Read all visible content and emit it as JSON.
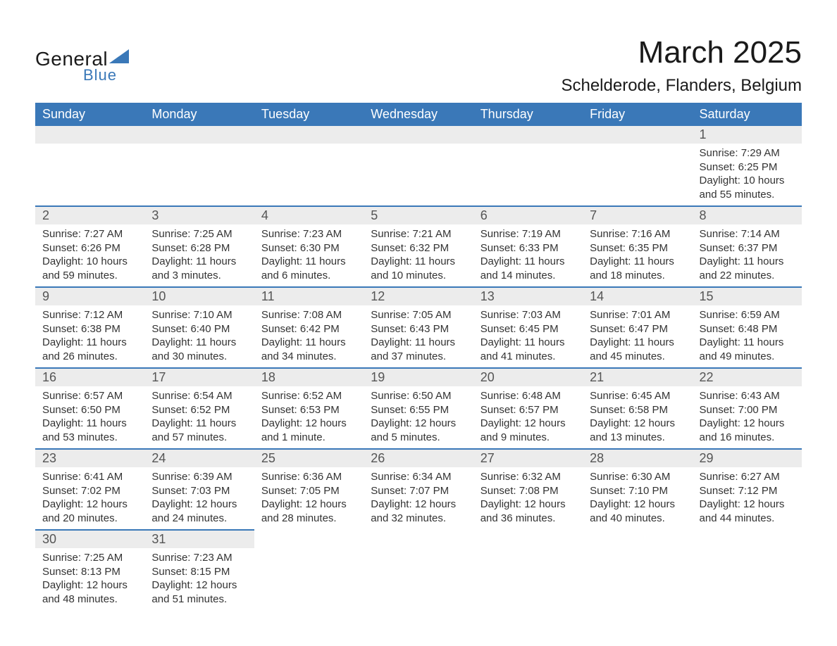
{
  "logo": {
    "text_general": "General",
    "text_blue": "Blue",
    "triangle_color": "#3a78b8"
  },
  "title": {
    "month": "March 2025",
    "location": "Schelderode, Flanders, Belgium"
  },
  "colors": {
    "header_bg": "#3a78b8",
    "header_text": "#ffffff",
    "daynum_bg": "#ececec",
    "row_border": "#3a78b8",
    "body_text": "#333333",
    "title_text": "#1a1a1a"
  },
  "typography": {
    "month_fontsize": 44,
    "location_fontsize": 24,
    "header_fontsize": 18,
    "daynum_fontsize": 18,
    "detail_fontsize": 15
  },
  "columns": [
    "Sunday",
    "Monday",
    "Tuesday",
    "Wednesday",
    "Thursday",
    "Friday",
    "Saturday"
  ],
  "weeks": [
    [
      null,
      null,
      null,
      null,
      null,
      null,
      {
        "n": "1",
        "sunrise": "Sunrise: 7:29 AM",
        "sunset": "Sunset: 6:25 PM",
        "day1": "Daylight: 10 hours",
        "day2": "and 55 minutes."
      }
    ],
    [
      {
        "n": "2",
        "sunrise": "Sunrise: 7:27 AM",
        "sunset": "Sunset: 6:26 PM",
        "day1": "Daylight: 10 hours",
        "day2": "and 59 minutes."
      },
      {
        "n": "3",
        "sunrise": "Sunrise: 7:25 AM",
        "sunset": "Sunset: 6:28 PM",
        "day1": "Daylight: 11 hours",
        "day2": "and 3 minutes."
      },
      {
        "n": "4",
        "sunrise": "Sunrise: 7:23 AM",
        "sunset": "Sunset: 6:30 PM",
        "day1": "Daylight: 11 hours",
        "day2": "and 6 minutes."
      },
      {
        "n": "5",
        "sunrise": "Sunrise: 7:21 AM",
        "sunset": "Sunset: 6:32 PM",
        "day1": "Daylight: 11 hours",
        "day2": "and 10 minutes."
      },
      {
        "n": "6",
        "sunrise": "Sunrise: 7:19 AM",
        "sunset": "Sunset: 6:33 PM",
        "day1": "Daylight: 11 hours",
        "day2": "and 14 minutes."
      },
      {
        "n": "7",
        "sunrise": "Sunrise: 7:16 AM",
        "sunset": "Sunset: 6:35 PM",
        "day1": "Daylight: 11 hours",
        "day2": "and 18 minutes."
      },
      {
        "n": "8",
        "sunrise": "Sunrise: 7:14 AM",
        "sunset": "Sunset: 6:37 PM",
        "day1": "Daylight: 11 hours",
        "day2": "and 22 minutes."
      }
    ],
    [
      {
        "n": "9",
        "sunrise": "Sunrise: 7:12 AM",
        "sunset": "Sunset: 6:38 PM",
        "day1": "Daylight: 11 hours",
        "day2": "and 26 minutes."
      },
      {
        "n": "10",
        "sunrise": "Sunrise: 7:10 AM",
        "sunset": "Sunset: 6:40 PM",
        "day1": "Daylight: 11 hours",
        "day2": "and 30 minutes."
      },
      {
        "n": "11",
        "sunrise": "Sunrise: 7:08 AM",
        "sunset": "Sunset: 6:42 PM",
        "day1": "Daylight: 11 hours",
        "day2": "and 34 minutes."
      },
      {
        "n": "12",
        "sunrise": "Sunrise: 7:05 AM",
        "sunset": "Sunset: 6:43 PM",
        "day1": "Daylight: 11 hours",
        "day2": "and 37 minutes."
      },
      {
        "n": "13",
        "sunrise": "Sunrise: 7:03 AM",
        "sunset": "Sunset: 6:45 PM",
        "day1": "Daylight: 11 hours",
        "day2": "and 41 minutes."
      },
      {
        "n": "14",
        "sunrise": "Sunrise: 7:01 AM",
        "sunset": "Sunset: 6:47 PM",
        "day1": "Daylight: 11 hours",
        "day2": "and 45 minutes."
      },
      {
        "n": "15",
        "sunrise": "Sunrise: 6:59 AM",
        "sunset": "Sunset: 6:48 PM",
        "day1": "Daylight: 11 hours",
        "day2": "and 49 minutes."
      }
    ],
    [
      {
        "n": "16",
        "sunrise": "Sunrise: 6:57 AM",
        "sunset": "Sunset: 6:50 PM",
        "day1": "Daylight: 11 hours",
        "day2": "and 53 minutes."
      },
      {
        "n": "17",
        "sunrise": "Sunrise: 6:54 AM",
        "sunset": "Sunset: 6:52 PM",
        "day1": "Daylight: 11 hours",
        "day2": "and 57 minutes."
      },
      {
        "n": "18",
        "sunrise": "Sunrise: 6:52 AM",
        "sunset": "Sunset: 6:53 PM",
        "day1": "Daylight: 12 hours",
        "day2": "and 1 minute."
      },
      {
        "n": "19",
        "sunrise": "Sunrise: 6:50 AM",
        "sunset": "Sunset: 6:55 PM",
        "day1": "Daylight: 12 hours",
        "day2": "and 5 minutes."
      },
      {
        "n": "20",
        "sunrise": "Sunrise: 6:48 AM",
        "sunset": "Sunset: 6:57 PM",
        "day1": "Daylight: 12 hours",
        "day2": "and 9 minutes."
      },
      {
        "n": "21",
        "sunrise": "Sunrise: 6:45 AM",
        "sunset": "Sunset: 6:58 PM",
        "day1": "Daylight: 12 hours",
        "day2": "and 13 minutes."
      },
      {
        "n": "22",
        "sunrise": "Sunrise: 6:43 AM",
        "sunset": "Sunset: 7:00 PM",
        "day1": "Daylight: 12 hours",
        "day2": "and 16 minutes."
      }
    ],
    [
      {
        "n": "23",
        "sunrise": "Sunrise: 6:41 AM",
        "sunset": "Sunset: 7:02 PM",
        "day1": "Daylight: 12 hours",
        "day2": "and 20 minutes."
      },
      {
        "n": "24",
        "sunrise": "Sunrise: 6:39 AM",
        "sunset": "Sunset: 7:03 PM",
        "day1": "Daylight: 12 hours",
        "day2": "and 24 minutes."
      },
      {
        "n": "25",
        "sunrise": "Sunrise: 6:36 AM",
        "sunset": "Sunset: 7:05 PM",
        "day1": "Daylight: 12 hours",
        "day2": "and 28 minutes."
      },
      {
        "n": "26",
        "sunrise": "Sunrise: 6:34 AM",
        "sunset": "Sunset: 7:07 PM",
        "day1": "Daylight: 12 hours",
        "day2": "and 32 minutes."
      },
      {
        "n": "27",
        "sunrise": "Sunrise: 6:32 AM",
        "sunset": "Sunset: 7:08 PM",
        "day1": "Daylight: 12 hours",
        "day2": "and 36 minutes."
      },
      {
        "n": "28",
        "sunrise": "Sunrise: 6:30 AM",
        "sunset": "Sunset: 7:10 PM",
        "day1": "Daylight: 12 hours",
        "day2": "and 40 minutes."
      },
      {
        "n": "29",
        "sunrise": "Sunrise: 6:27 AM",
        "sunset": "Sunset: 7:12 PM",
        "day1": "Daylight: 12 hours",
        "day2": "and 44 minutes."
      }
    ],
    [
      {
        "n": "30",
        "sunrise": "Sunrise: 7:25 AM",
        "sunset": "Sunset: 8:13 PM",
        "day1": "Daylight: 12 hours",
        "day2": "and 48 minutes."
      },
      {
        "n": "31",
        "sunrise": "Sunrise: 7:23 AM",
        "sunset": "Sunset: 8:15 PM",
        "day1": "Daylight: 12 hours",
        "day2": "and 51 minutes."
      },
      null,
      null,
      null,
      null,
      null
    ]
  ]
}
